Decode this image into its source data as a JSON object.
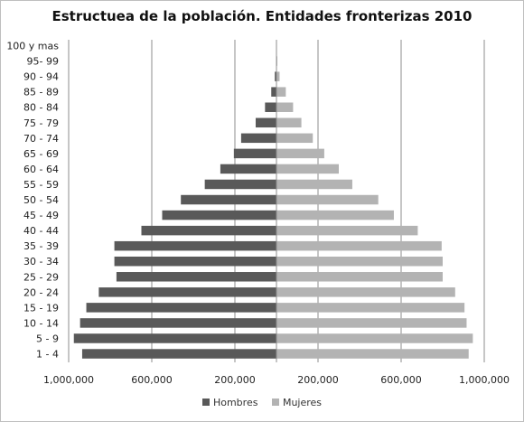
{
  "chart_data": {
    "type": "bar",
    "orientation": "horizontal-population-pyramid",
    "title": "Estructuea de la población. Entidades fronterizas 2010",
    "categories": [
      "1 - 4",
      "5 - 9",
      "10 - 14",
      "15 - 19",
      "20 - 24",
      "25 - 29",
      "30 - 34",
      "35 - 39",
      "40 - 44",
      "45 - 49",
      "50 - 54",
      "55 - 59",
      "60 - 64",
      "65 - 69",
      "70 - 74",
      "75 - 79",
      "80 - 84",
      "85 - 89",
      "90 - 94",
      "95- 99",
      "100 y mas"
    ],
    "series": [
      {
        "name": "Hombres",
        "color": "#595959",
        "values": [
          935000,
          975000,
          945000,
          915000,
          855000,
          770000,
          780000,
          780000,
          650000,
          550000,
          460000,
          345000,
          270000,
          205000,
          170000,
          100000,
          55000,
          25000,
          8000,
          2000,
          500
        ]
      },
      {
        "name": "Mujeres",
        "color": "#b3b3b3",
        "values": [
          925000,
          945000,
          915000,
          905000,
          860000,
          800000,
          800000,
          795000,
          680000,
          565000,
          490000,
          365000,
          300000,
          230000,
          175000,
          120000,
          80000,
          45000,
          15000,
          4000,
          1000
        ]
      }
    ],
    "xaxis": {
      "range": [
        -1000000,
        1000000
      ],
      "ticks": [
        -1000000,
        -600000,
        -200000,
        200000,
        600000,
        1000000
      ],
      "tick_labels": [
        "1,000,000",
        "600,000",
        "200,000",
        "200,000",
        "600,000",
        "1,000,000"
      ]
    },
    "grid": "vertical",
    "legend_placement": "bottom"
  }
}
